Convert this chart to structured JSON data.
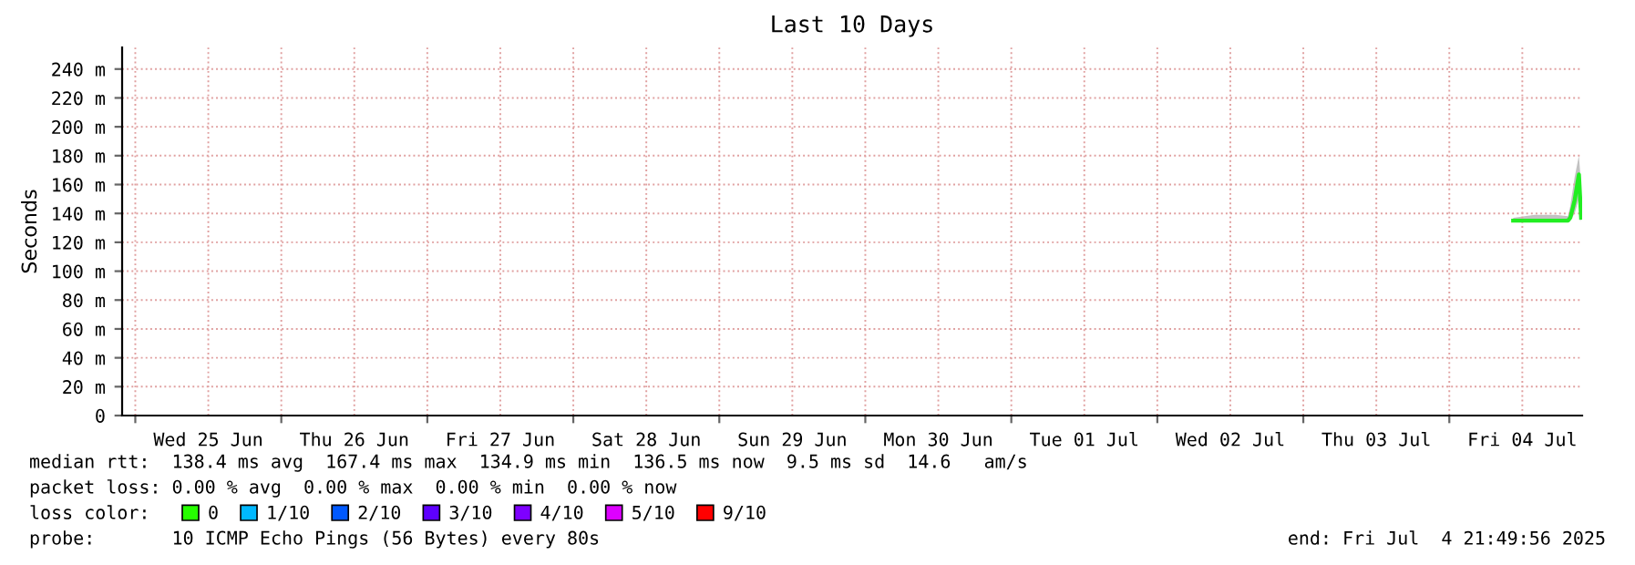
{
  "chart_data": {
    "type": "line",
    "title": "Last 10 Days",
    "ylabel": "Seconds",
    "xlim": [
      "2025-06-24T21:50",
      "2025-07-04T21:50"
    ],
    "xticks": [
      {
        "value": "2025-06-25T00:00",
        "label": null
      },
      {
        "value": "2025-06-25T12:00",
        "label": "Wed 25 Jun"
      },
      {
        "value": "2025-06-26T00:00",
        "label": null
      },
      {
        "value": "2025-06-26T12:00",
        "label": "Thu 26 Jun"
      },
      {
        "value": "2025-06-27T00:00",
        "label": null
      },
      {
        "value": "2025-06-27T12:00",
        "label": "Fri 27 Jun"
      },
      {
        "value": "2025-06-28T00:00",
        "label": null
      },
      {
        "value": "2025-06-28T12:00",
        "label": "Sat 28 Jun"
      },
      {
        "value": "2025-06-29T00:00",
        "label": null
      },
      {
        "value": "2025-06-29T12:00",
        "label": "Sun 29 Jun"
      },
      {
        "value": "2025-06-30T00:00",
        "label": null
      },
      {
        "value": "2025-06-30T12:00",
        "label": "Mon 30 Jun"
      },
      {
        "value": "2025-07-01T00:00",
        "label": null
      },
      {
        "value": "2025-07-01T12:00",
        "label": "Tue 01 Jul"
      },
      {
        "value": "2025-07-02T00:00",
        "label": null
      },
      {
        "value": "2025-07-02T12:00",
        "label": "Wed 02 Jul"
      },
      {
        "value": "2025-07-03T00:00",
        "label": null
      },
      {
        "value": "2025-07-03T12:00",
        "label": "Thu 03 Jul"
      },
      {
        "value": "2025-07-04T00:00",
        "label": null
      },
      {
        "value": "2025-07-04T12:00",
        "label": "Fri 04 Jul"
      }
    ],
    "ylim": [
      0,
      255
    ],
    "yticks": [
      0,
      {
        "value": 20,
        "label": "20 m"
      },
      {
        "value": 40,
        "label": "40 m"
      },
      {
        "value": 60,
        "label": "60 m"
      },
      {
        "value": 80,
        "label": "80 m"
      },
      {
        "value": 100,
        "label": "100 m"
      },
      {
        "value": 120,
        "label": "120 m"
      },
      {
        "value": 140,
        "label": "140 m"
      },
      {
        "value": 160,
        "label": "160 m"
      },
      {
        "value": 180,
        "label": "180 m"
      },
      {
        "value": 200,
        "label": "200 m"
      },
      {
        "value": 220,
        "label": "220 m"
      },
      {
        "value": 240,
        "label": "240 m"
      }
    ],
    "grid": true,
    "legend": "bottom left",
    "marker": "none",
    "line_style": "solid",
    "series": [
      {
        "color": "#22ee22",
        "x": [
          "2025-07-04T10:30",
          "2025-07-04T14:00",
          "2025-07-04T17:30",
          "2025-07-04T19:30",
          "2025-07-04T19:53",
          "2025-07-04T20:36",
          "2025-07-04T21:18",
          "2025-07-04T21:40"
        ],
        "values": [
          135,
          135,
          135,
          135,
          137,
          149,
          167,
          137
        ],
        "lower": [
          134,
          134,
          134,
          134,
          135,
          140,
          150,
          134
        ],
        "upper": [
          137,
          139,
          139,
          138,
          145,
          165,
          180,
          160
        ]
      },
      {
        "name": "0",
        "color": "#26ff00"
      },
      {
        "name": "1/10",
        "color": "#00b8ff"
      },
      {
        "name": "2/10",
        "color": "#0059ff"
      },
      {
        "name": "3/10",
        "color": "#5e00ff"
      },
      {
        "name": "4/10",
        "color": "#7e00ff"
      },
      {
        "name": "5/10",
        "color": "#dd00ff"
      },
      {
        "name": "9/10",
        "color": "#ff0000"
      }
    ],
    "annotations": [
      "median rtt:  138.4 ms avg  167.4 ms max  134.9 ms min  136.5 ms now  9.5 ms sd  14.6   am/s",
      "packet loss: 0.00 % avg  0.00 % max  0.00 % min  0.00 % now",
      "loss color:",
      "probe:       10 ICMP Echo Pings (56 Bytes) every 80s",
      "end: Fri Jul  4 21:49:56 2025"
    ]
  }
}
